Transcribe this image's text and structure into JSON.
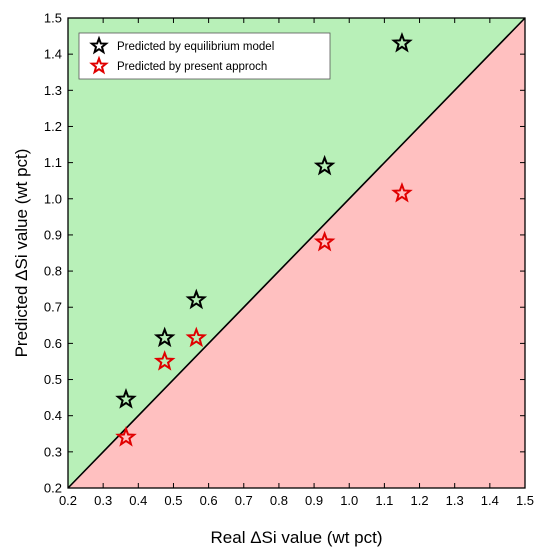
{
  "chart_data": {
    "type": "scatter",
    "xlabel": "Real ΔSi value (wt pct)",
    "ylabel": "Predicted ΔSi value (wt pct)",
    "xlim": [
      0.2,
      1.5
    ],
    "ylim": [
      0.2,
      1.5
    ],
    "xticks": [
      "0.2",
      "0.3",
      "0.4",
      "0.5",
      "0.6",
      "0.7",
      "0.8",
      "0.9",
      "1.0",
      "1.1",
      "1.2",
      "1.3",
      "1.4",
      "1.5"
    ],
    "yticks": [
      "0.2",
      "0.3",
      "0.4",
      "0.5",
      "0.6",
      "0.7",
      "0.8",
      "0.9",
      "1.0",
      "1.1",
      "1.2",
      "1.3",
      "1.4",
      "1.5"
    ],
    "legend_position": "top-left",
    "grid": false,
    "diagonal_line": "y = x",
    "region_above_color": "#b8f0b8",
    "region_below_color": "#ffc0c0",
    "series": [
      {
        "name": "Predicted by equilibrium model",
        "color": "#000000",
        "marker": "star-open",
        "x": [
          0.365,
          0.475,
          0.565,
          0.93,
          1.15
        ],
        "y": [
          0.445,
          0.615,
          0.72,
          1.09,
          1.43
        ]
      },
      {
        "name": "Predicted by present approch",
        "color": "#e00000",
        "marker": "star-open",
        "x": [
          0.365,
          0.475,
          0.565,
          0.93,
          1.15
        ],
        "y": [
          0.34,
          0.55,
          0.615,
          0.88,
          1.015
        ]
      }
    ]
  }
}
